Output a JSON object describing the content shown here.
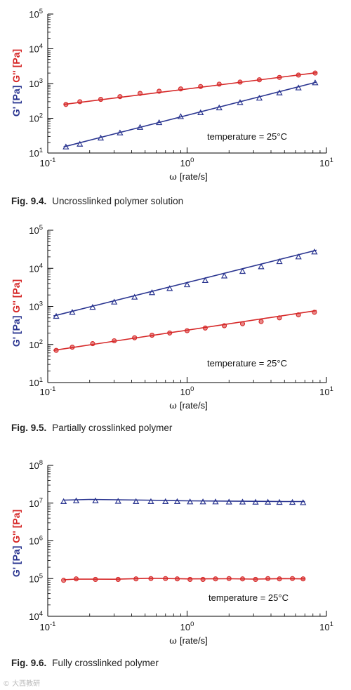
{
  "colors": {
    "gprime": "#2a3590",
    "gdouble": "#d62828",
    "axis": "#000000"
  },
  "chart_data": [
    {
      "type": "scatter",
      "title": "",
      "caption_number": "Fig. 9.4.",
      "caption_text": "Uncrosslinked polymer solution",
      "xlabel_symbol": "ω",
      "xlabel_unit": "[rate/s]",
      "ylabel_g1": "G' [Pa]",
      "ylabel_g2": "G'' [Pa]",
      "annotation": "temperature = 25°C",
      "xscale": "log",
      "yscale": "log",
      "xlim": [
        0.1,
        10
      ],
      "ylim": [
        10,
        100000
      ],
      "x_ticks": [
        {
          "v": 0.1,
          "b": "10",
          "e": "-1"
        },
        {
          "v": 1,
          "b": "10",
          "e": "0"
        },
        {
          "v": 10,
          "b": "10",
          "e": "1"
        }
      ],
      "y_ticks": [
        {
          "v": 10,
          "b": "10",
          "e": "1"
        },
        {
          "v": 100,
          "b": "10",
          "e": "2"
        },
        {
          "v": 1000,
          "b": "10",
          "e": "3"
        },
        {
          "v": 10000,
          "b": "10",
          "e": "4"
        },
        {
          "v": 100000,
          "b": "10",
          "e": "5"
        }
      ],
      "series": [
        {
          "key": "gprime",
          "marker": "triangle",
          "x": [
            0.135,
            0.17,
            0.24,
            0.33,
            0.46,
            0.63,
            0.9,
            1.25,
            1.7,
            2.4,
            3.3,
            4.6,
            6.3,
            8.3
          ],
          "y": [
            15,
            18,
            27,
            38,
            55,
            75,
            112,
            145,
            200,
            285,
            380,
            540,
            750,
            1050
          ],
          "fit_x": [
            0.13,
            8.5
          ],
          "fit_y": [
            15,
            1100
          ]
        },
        {
          "key": "gdouble",
          "marker": "circle",
          "x": [
            0.135,
            0.17,
            0.24,
            0.33,
            0.46,
            0.63,
            0.9,
            1.25,
            1.7,
            2.4,
            3.3,
            4.6,
            6.3,
            8.3
          ],
          "y": [
            250,
            300,
            350,
            420,
            520,
            600,
            700,
            820,
            960,
            1100,
            1280,
            1500,
            1750,
            2000
          ],
          "fit_x": [
            0.13,
            8.5
          ],
          "fit_y": [
            250,
            2050
          ]
        }
      ]
    },
    {
      "type": "scatter",
      "title": "",
      "caption_number": "Fig. 9.5.",
      "caption_text": "Partially crosslinked polymer",
      "xlabel_symbol": "ω",
      "xlabel_unit": "[rate/s]",
      "ylabel_g1": "G' [Pa]",
      "ylabel_g2": "G'' [Pa]",
      "annotation": "temperature = 25°C",
      "xscale": "log",
      "yscale": "log",
      "xlim": [
        0.1,
        10
      ],
      "ylim": [
        10,
        100000
      ],
      "x_ticks": [
        {
          "v": 0.1,
          "b": "10",
          "e": "-1"
        },
        {
          "v": 1,
          "b": "10",
          "e": "0"
        },
        {
          "v": 10,
          "b": "10",
          "e": "1"
        }
      ],
      "y_ticks": [
        {
          "v": 10,
          "b": "10",
          "e": "1"
        },
        {
          "v": 100,
          "b": "10",
          "e": "2"
        },
        {
          "v": 1000,
          "b": "10",
          "e": "3"
        },
        {
          "v": 10000,
          "b": "10",
          "e": "4"
        },
        {
          "v": 100000,
          "b": "10",
          "e": "5"
        }
      ],
      "series": [
        {
          "key": "gprime",
          "marker": "triangle",
          "x": [
            0.115,
            0.15,
            0.21,
            0.3,
            0.42,
            0.56,
            0.75,
            1.0,
            1.35,
            1.85,
            2.5,
            3.4,
            4.6,
            6.3,
            8.2
          ],
          "y": [
            550,
            700,
            950,
            1300,
            1750,
            2300,
            2950,
            3700,
            4800,
            6300,
            8300,
            11000,
            15000,
            20000,
            27000
          ],
          "fit_x": [
            0.11,
            8.5
          ],
          "fit_y": [
            560,
            30000
          ]
        },
        {
          "key": "gdouble",
          "marker": "circle",
          "x": [
            0.115,
            0.15,
            0.21,
            0.3,
            0.42,
            0.56,
            0.75,
            1.0,
            1.35,
            1.85,
            2.5,
            3.4,
            4.6,
            6.3,
            8.2
          ],
          "y": [
            70,
            85,
            105,
            125,
            150,
            175,
            200,
            230,
            270,
            310,
            350,
            400,
            500,
            600,
            700
          ],
          "fit_x": [
            0.11,
            8.5
          ],
          "fit_y": [
            70,
            780
          ]
        }
      ]
    },
    {
      "type": "scatter",
      "title": "",
      "caption_number": "Fig. 9.6.",
      "caption_text": "Fully crosslinked polymer",
      "xlabel_symbol": "ω",
      "xlabel_unit": "[rate/s]",
      "ylabel_g1": "G' [Pa]",
      "ylabel_g2": "G'' [Pa]",
      "annotation": "temperature = 25°C",
      "xscale": "log",
      "yscale": "log",
      "xlim": [
        0.1,
        10
      ],
      "ylim": [
        10000,
        100000000
      ],
      "x_ticks": [
        {
          "v": 0.1,
          "b": "10",
          "e": "-1"
        },
        {
          "v": 1,
          "b": "10",
          "e": "0"
        },
        {
          "v": 10,
          "b": "10",
          "e": "1"
        }
      ],
      "y_ticks": [
        {
          "v": 10000,
          "b": "10",
          "e": "4"
        },
        {
          "v": 100000,
          "b": "10",
          "e": "5"
        },
        {
          "v": 1000000,
          "b": "10",
          "e": "6"
        },
        {
          "v": 10000000,
          "b": "10",
          "e": "7"
        },
        {
          "v": 100000000,
          "b": "10",
          "e": "8"
        }
      ],
      "series": [
        {
          "key": "gprime",
          "marker": "triangle",
          "x": [
            0.13,
            0.16,
            0.22,
            0.32,
            0.43,
            0.55,
            0.7,
            0.85,
            1.05,
            1.3,
            1.6,
            2.0,
            2.5,
            3.1,
            3.8,
            4.6,
            5.7,
            6.8
          ],
          "y": [
            11000000,
            11500000,
            11500000,
            11200000,
            11000000,
            11000000,
            11000000,
            11000000,
            10800000,
            10800000,
            10800000,
            10700000,
            10700000,
            10600000,
            10600000,
            10500000,
            10500000,
            10300000
          ],
          "fit_x": [
            0.13,
            0.2,
            0.5,
            1.0,
            2.0,
            5.0,
            7.0
          ],
          "fit_y": [
            12000000,
            12500000,
            12000000,
            11500000,
            11300000,
            11000000,
            11000000
          ]
        },
        {
          "key": "gdouble",
          "marker": "circle",
          "x": [
            0.13,
            0.16,
            0.22,
            0.32,
            0.43,
            0.55,
            0.7,
            0.85,
            1.05,
            1.3,
            1.6,
            2.0,
            2.5,
            3.1,
            3.8,
            4.6,
            5.7,
            6.8
          ],
          "y": [
            90000,
            98000,
            95000,
            95000,
            98000,
            100000,
            100000,
            98000,
            95000,
            95000,
            98000,
            100000,
            98000,
            95000,
            100000,
            98000,
            100000,
            98000
          ],
          "fit_x": [
            0.13,
            0.16,
            0.3,
            0.55,
            1.0,
            2.0,
            3.0,
            5.0,
            7.0
          ],
          "fit_y": [
            93000,
            97000,
            96000,
            102000,
            98000,
            99000,
            97000,
            100000,
            98000
          ]
        }
      ]
    }
  ],
  "watermark": "© 大西教研"
}
